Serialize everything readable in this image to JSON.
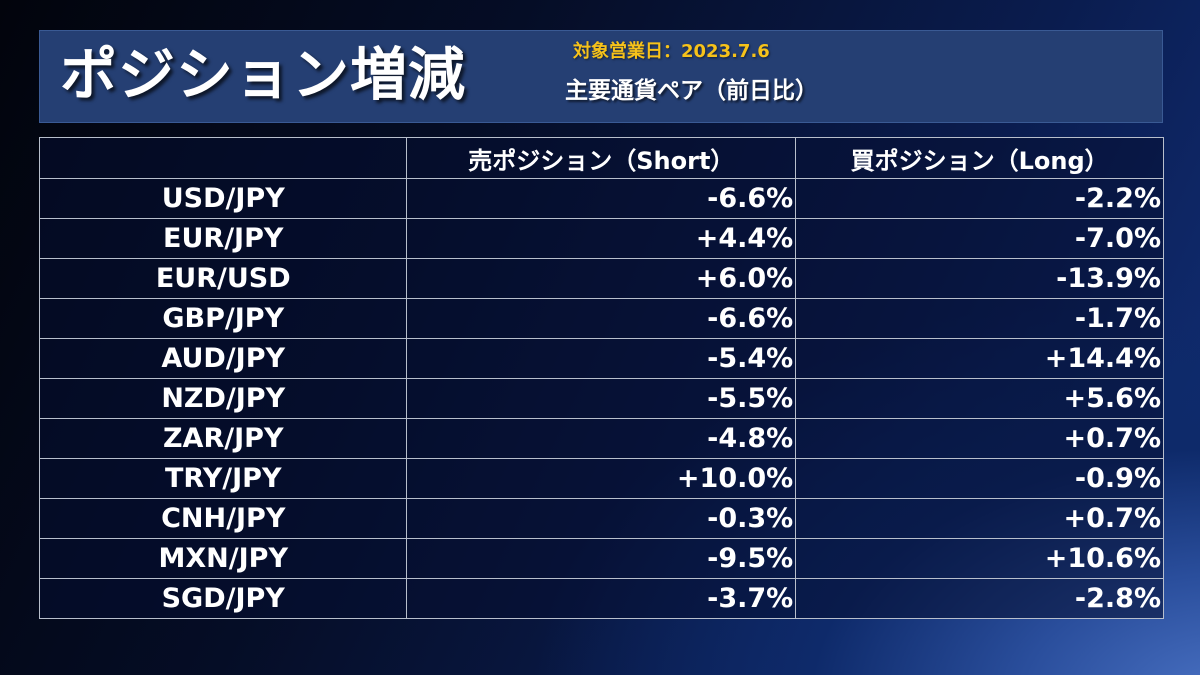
{
  "header": {
    "title": "ポジション増減",
    "date_label": "対象営業日：2023.7.6",
    "subtitle": "主要通貨ペア（前日比）"
  },
  "table": {
    "columns": [
      "",
      "売ポジション（Short）",
      "買ポジション（Long）"
    ],
    "rows": [
      {
        "pair": "USD/JPY",
        "short": "-6.6%",
        "long": "-2.2%"
      },
      {
        "pair": "EUR/JPY",
        "short": "+4.4%",
        "long": "-7.0%"
      },
      {
        "pair": "EUR/USD",
        "short": "+6.0%",
        "long": "-13.9%"
      },
      {
        "pair": "GBP/JPY",
        "short": "-6.6%",
        "long": "-1.7%"
      },
      {
        "pair": "AUD/JPY",
        "short": "-5.4%",
        "long": "+14.4%"
      },
      {
        "pair": "NZD/JPY",
        "short": "-5.5%",
        "long": "+5.6%"
      },
      {
        "pair": "ZAR/JPY",
        "short": "-4.8%",
        "long": "+0.7%"
      },
      {
        "pair": "TRY/JPY",
        "short": "+10.0%",
        "long": "-0.9%"
      },
      {
        "pair": "CNH/JPY",
        "short": "-0.3%",
        "long": "+0.7%"
      },
      {
        "pair": "MXN/JPY",
        "short": "-9.5%",
        "long": "+10.6%"
      },
      {
        "pair": "SGD/JPY",
        "short": "-3.7%",
        "long": "-2.8%"
      }
    ]
  },
  "colors": {
    "banner_bg": "#253f73",
    "date_accent": "#f6c21a",
    "text": "#ffffff",
    "grid": "#b8bfcc"
  }
}
